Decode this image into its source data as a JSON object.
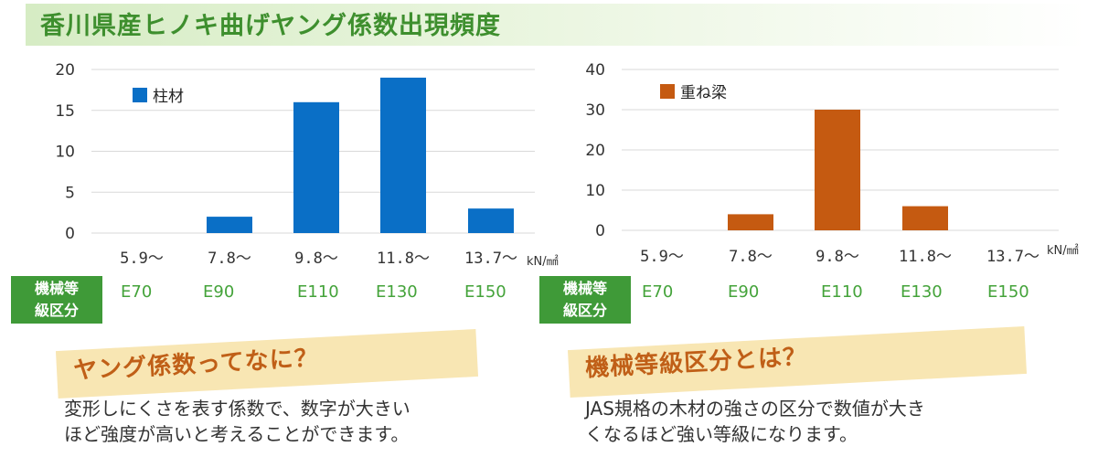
{
  "title": "香川県産ヒノキ曲げヤング係数出現頻度",
  "class_label": "機械等\n級区分",
  "unit": "kN/㎟",
  "colors": {
    "pillar": "#0a6fc6",
    "beam": "#c55a11",
    "title": "#3e8f2e",
    "grade": "#44a33a",
    "note_head": "#c05f17"
  },
  "chart_data": [
    {
      "type": "bar",
      "categories": [
        "5.9〜",
        "7.8〜",
        "9.8〜",
        "11.8〜",
        "13.7〜"
      ],
      "grades": [
        "E70",
        "E90",
        "E110",
        "E130",
        "E150"
      ],
      "series": [
        {
          "name": "柱材",
          "values": [
            0,
            2,
            16,
            19,
            3
          ]
        }
      ],
      "ylim": [
        0,
        20
      ],
      "yticks": [
        "0",
        "5",
        "10",
        "15",
        "20"
      ],
      "unit": "kN/㎟",
      "grid": true,
      "legend": "top-left"
    },
    {
      "type": "bar",
      "categories": [
        "5.9〜",
        "7.8〜",
        "9.8〜",
        "11.8〜",
        "13.7〜"
      ],
      "grades": [
        "E70",
        "E90",
        "E110",
        "E130",
        "E150"
      ],
      "series": [
        {
          "name": "重ね梁",
          "values": [
            0,
            4,
            30,
            6,
            0
          ]
        }
      ],
      "ylim": [
        0,
        40
      ],
      "yticks": [
        "0",
        "10",
        "20",
        "30",
        "40"
      ],
      "unit": "kN/㎟",
      "grid": true,
      "legend": "top-left"
    }
  ],
  "notes": [
    {
      "heading": "ヤング係数ってなに？",
      "body": "変形しにくさを表す係数で、数字が大きい\nほど強度が高いと考えることができます。"
    },
    {
      "heading": "機械等級区分とは？",
      "body": "JAS規格の木材の強さの区分で数値が大き\nくなるほど強い等級になります。"
    }
  ]
}
